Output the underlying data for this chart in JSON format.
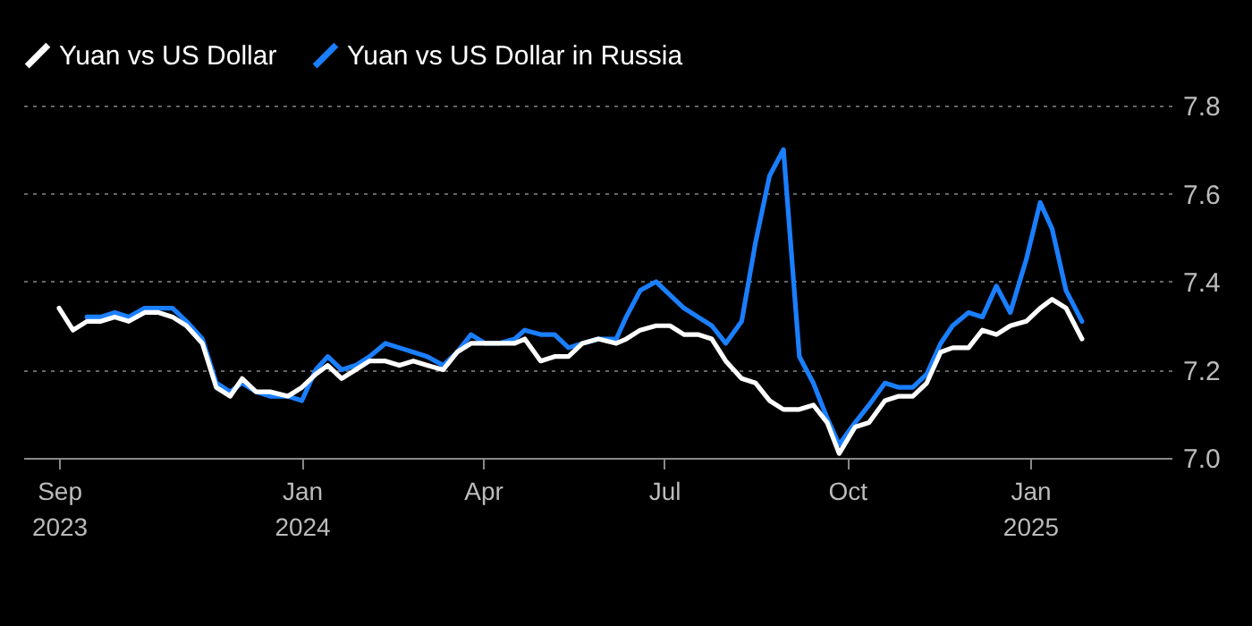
{
  "chart_data": {
    "type": "line",
    "x": [
      "2023-09-01",
      "2023-09-08",
      "2023-09-15",
      "2023-09-22",
      "2023-09-29",
      "2023-10-06",
      "2023-10-14",
      "2023-10-21",
      "2023-10-28",
      "2023-11-04",
      "2023-11-12",
      "2023-11-19",
      "2023-11-26",
      "2023-12-02",
      "2023-12-09",
      "2023-12-16",
      "2023-12-25",
      "2024-01-01",
      "2024-01-08",
      "2024-01-14",
      "2024-01-21",
      "2024-01-28",
      "2024-02-04",
      "2024-02-12",
      "2024-02-19",
      "2024-02-26",
      "2024-03-04",
      "2024-03-12",
      "2024-03-19",
      "2024-03-26",
      "2024-04-02",
      "2024-04-09",
      "2024-04-17",
      "2024-04-22",
      "2024-04-30",
      "2024-05-07",
      "2024-05-14",
      "2024-05-21",
      "2024-05-29",
      "2024-06-07",
      "2024-06-12",
      "2024-06-19",
      "2024-06-27",
      "2024-07-04",
      "2024-07-11",
      "2024-07-18",
      "2024-07-25",
      "2024-08-01",
      "2024-08-09",
      "2024-08-16",
      "2024-08-23",
      "2024-08-30",
      "2024-09-07",
      "2024-09-14",
      "2024-09-21",
      "2024-09-27",
      "2024-10-05",
      "2024-10-12",
      "2024-10-20",
      "2024-10-27",
      "2024-11-03",
      "2024-11-10",
      "2024-11-17",
      "2024-11-23",
      "2024-12-01",
      "2024-12-08",
      "2024-12-15",
      "2024-12-22",
      "2024-12-30",
      "2025-01-06",
      "2025-01-12",
      "2025-01-19",
      "2025-01-27"
    ],
    "series": [
      {
        "name": "Yuan vs US Dollar",
        "color": "#ffffff",
        "values": [
          7.34,
          7.29,
          7.31,
          7.31,
          7.32,
          7.31,
          7.33,
          7.33,
          7.32,
          7.3,
          7.26,
          7.16,
          7.14,
          7.18,
          7.15,
          7.15,
          7.14,
          7.16,
          7.19,
          7.21,
          7.18,
          7.2,
          7.22,
          7.22,
          7.21,
          7.22,
          7.21,
          7.2,
          7.24,
          7.26,
          7.26,
          7.26,
          7.26,
          7.27,
          7.22,
          7.23,
          7.23,
          7.26,
          7.27,
          7.26,
          7.27,
          7.29,
          7.3,
          7.3,
          7.28,
          7.28,
          7.27,
          7.22,
          7.18,
          7.17,
          7.13,
          7.11,
          7.11,
          7.12,
          7.08,
          7.01,
          7.07,
          7.08,
          7.13,
          7.14,
          7.14,
          7.17,
          7.24,
          7.25,
          7.25,
          7.29,
          7.28,
          7.3,
          7.31,
          7.34,
          7.36,
          7.34,
          7.27
        ]
      },
      {
        "name": "Yuan vs US Dollar in Russia",
        "color": "#1a7fff",
        "values": [
          null,
          null,
          7.32,
          7.32,
          7.33,
          7.32,
          7.34,
          7.34,
          7.34,
          7.31,
          7.27,
          7.17,
          7.15,
          7.17,
          7.15,
          7.14,
          7.14,
          7.13,
          7.2,
          7.23,
          7.2,
          7.21,
          7.23,
          7.26,
          7.25,
          7.24,
          7.23,
          7.21,
          7.24,
          7.28,
          7.26,
          7.26,
          7.27,
          7.29,
          7.28,
          7.28,
          7.25,
          7.26,
          7.27,
          7.27,
          7.32,
          7.38,
          7.4,
          7.37,
          7.34,
          7.32,
          7.3,
          7.26,
          7.31,
          7.49,
          7.64,
          7.7,
          7.23,
          7.17,
          7.09,
          7.03,
          7.08,
          7.12,
          7.17,
          7.16,
          7.16,
          7.19,
          7.26,
          7.3,
          7.33,
          7.32,
          7.39,
          7.33,
          7.45,
          7.58,
          7.52,
          7.38,
          7.31
        ]
      }
    ],
    "xlim": [
      "2023-08-14",
      "2025-03-13"
    ],
    "xticks": [
      {
        "value": "2023-09-01",
        "label": "Sep\n2023"
      },
      {
        "value": "2024-01-01",
        "label": "Jan\n2024"
      },
      {
        "value": "2024-04-01",
        "label": "Apr"
      },
      {
        "value": "2024-07-01",
        "label": "Jul"
      },
      {
        "value": "2024-10-01",
        "label": "Oct"
      },
      {
        "value": "2025-01-01",
        "label": "Jan\n2025"
      }
    ],
    "ylim": [
      7.0,
      7.8
    ],
    "yticks": [
      {
        "value": 7.0,
        "label": "7.0"
      },
      7.2,
      7.4,
      7.6,
      7.8
    ],
    "grid": "y",
    "legend": "top left",
    "line_style": "solid"
  }
}
